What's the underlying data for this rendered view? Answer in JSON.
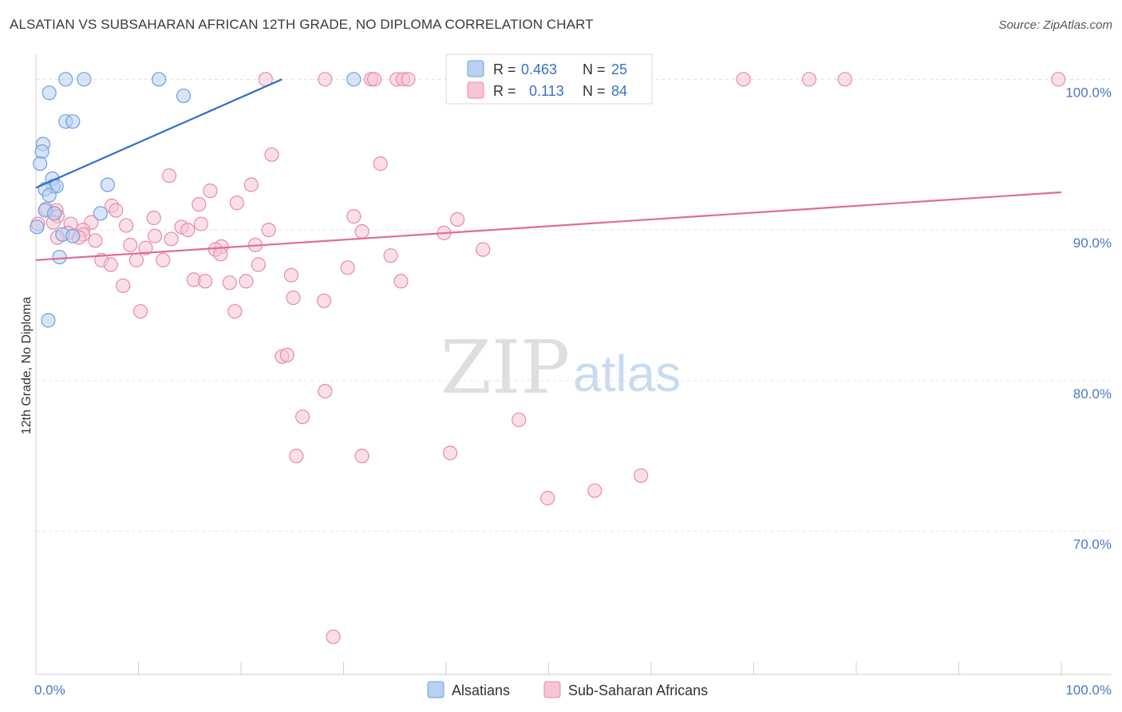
{
  "title": "ALSATIAN VS SUBSAHARAN AFRICAN 12TH GRADE, NO DIPLOMA CORRELATION CHART",
  "source": "Source: ZipAtlas.com",
  "watermark": {
    "zip": "ZIP",
    "atlas": "atlas"
  },
  "colors": {
    "blue": "#6f9fdf",
    "blue_fill": "#b8d0f2",
    "blue_line": "#2f6fc9",
    "pink": "#e88aaa",
    "pink_fill": "#f7c4d4",
    "pink_line": "#e06c97",
    "tick_text": "#4a78c2"
  },
  "legend_box": {
    "rows": [
      {
        "r_label": "R =",
        "r_value": "0.463",
        "n_label": "N =",
        "n_value": "25"
      },
      {
        "r_label": "R =",
        "r_value": "0.113",
        "n_label": "N =",
        "n_value": "84"
      }
    ]
  },
  "bottom_legend": [
    "Alsatians",
    "Sub-Saharan Africans"
  ],
  "chart_data": {
    "type": "scatter",
    "title": "ALSATIAN VS SUBSAHARAN AFRICAN 12TH GRADE, NO DIPLOMA CORRELATION CHART",
    "xlabel": "",
    "ylabel": "12th Grade, No Diploma",
    "xlim": [
      0,
      100
    ],
    "ylim": [
      60.5,
      101.5
    ],
    "x_tick_labels": [
      "0.0%",
      "100.0%"
    ],
    "y_ticks": [
      70,
      80,
      90,
      100
    ],
    "y_tick_labels": [
      "70.0%",
      "80.0%",
      "90.0%",
      "100.0%"
    ],
    "grid": true,
    "legend_placement": "bottom-center",
    "series": [
      {
        "name": "Alsatians",
        "r": 0.463,
        "n": 25,
        "trend": {
          "x0": 0,
          "y0": 92.8,
          "x1": 24.0,
          "y1": 100.0
        },
        "points": [
          [
            2.9,
            100.0
          ],
          [
            4.7,
            100.0
          ],
          [
            12.0,
            100.0
          ],
          [
            31.0,
            100.0
          ],
          [
            1.3,
            99.1
          ],
          [
            14.4,
            98.9
          ],
          [
            2.9,
            97.2
          ],
          [
            3.6,
            97.2
          ],
          [
            0.7,
            95.7
          ],
          [
            0.6,
            95.2
          ],
          [
            0.4,
            94.4
          ],
          [
            1.6,
            93.4
          ],
          [
            7.0,
            93.0
          ],
          [
            1.7,
            92.9
          ],
          [
            2.0,
            92.9
          ],
          [
            0.9,
            92.7
          ],
          [
            1.3,
            92.3
          ],
          [
            0.9,
            91.3
          ],
          [
            1.8,
            91.1
          ],
          [
            6.3,
            91.1
          ],
          [
            0.1,
            90.2
          ],
          [
            2.6,
            89.7
          ],
          [
            3.6,
            89.6
          ],
          [
            2.3,
            88.2
          ],
          [
            1.2,
            84.0
          ]
        ]
      },
      {
        "name": "Sub-Saharan Africans",
        "r": 0.113,
        "n": 84,
        "trend": {
          "x0": 0,
          "y0": 88.0,
          "x1": 100,
          "y1": 92.5
        },
        "points": [
          [
            22.4,
            100.0
          ],
          [
            28.2,
            100.0
          ],
          [
            32.7,
            100.0
          ],
          [
            33.0,
            100.0
          ],
          [
            35.2,
            100.0
          ],
          [
            35.8,
            100.0
          ],
          [
            36.3,
            100.0
          ],
          [
            44.8,
            100.0
          ],
          [
            49.7,
            100.0
          ],
          [
            69.0,
            100.0
          ],
          [
            75.4,
            100.0
          ],
          [
            78.9,
            100.0
          ],
          [
            99.7,
            100.0
          ],
          [
            23.0,
            95.0
          ],
          [
            33.6,
            94.4
          ],
          [
            13.0,
            93.6
          ],
          [
            21.0,
            93.0
          ],
          [
            17.0,
            92.6
          ],
          [
            15.9,
            91.7
          ],
          [
            19.6,
            91.8
          ],
          [
            7.4,
            91.6
          ],
          [
            1.0,
            91.4
          ],
          [
            2.0,
            91.3
          ],
          [
            7.8,
            91.3
          ],
          [
            2.1,
            90.9
          ],
          [
            31.0,
            90.9
          ],
          [
            1.7,
            90.5
          ],
          [
            41.1,
            90.7
          ],
          [
            11.5,
            90.8
          ],
          [
            0.2,
            90.4
          ],
          [
            3.4,
            90.4
          ],
          [
            5.4,
            90.5
          ],
          [
            16.1,
            90.4
          ],
          [
            8.8,
            90.3
          ],
          [
            14.2,
            90.2
          ],
          [
            14.8,
            90.0
          ],
          [
            4.6,
            90.0
          ],
          [
            22.7,
            90.0
          ],
          [
            31.8,
            89.9
          ],
          [
            39.8,
            89.8
          ],
          [
            3.1,
            89.8
          ],
          [
            4.6,
            89.7
          ],
          [
            11.6,
            89.6
          ],
          [
            2.1,
            89.5
          ],
          [
            4.2,
            89.5
          ],
          [
            13.2,
            89.4
          ],
          [
            5.8,
            89.3
          ],
          [
            9.2,
            89.0
          ],
          [
            21.4,
            89.0
          ],
          [
            18.1,
            88.9
          ],
          [
            10.7,
            88.8
          ],
          [
            17.5,
            88.7
          ],
          [
            43.6,
            88.7
          ],
          [
            18.0,
            88.4
          ],
          [
            34.6,
            88.3
          ],
          [
            6.4,
            88.0
          ],
          [
            9.8,
            88.0
          ],
          [
            12.4,
            88.0
          ],
          [
            7.3,
            87.7
          ],
          [
            21.7,
            87.7
          ],
          [
            30.4,
            87.5
          ],
          [
            24.9,
            87.0
          ],
          [
            15.4,
            86.7
          ],
          [
            16.5,
            86.6
          ],
          [
            20.5,
            86.6
          ],
          [
            18.9,
            86.5
          ],
          [
            35.6,
            86.6
          ],
          [
            8.5,
            86.3
          ],
          [
            25.1,
            85.5
          ],
          [
            28.1,
            85.3
          ],
          [
            10.2,
            84.6
          ],
          [
            19.4,
            84.6
          ],
          [
            24.0,
            81.6
          ],
          [
            24.5,
            81.7
          ],
          [
            28.2,
            79.3
          ],
          [
            26.0,
            77.6
          ],
          [
            47.1,
            77.4
          ],
          [
            25.4,
            75.0
          ],
          [
            31.8,
            75.0
          ],
          [
            40.4,
            75.2
          ],
          [
            59.0,
            73.7
          ],
          [
            49.9,
            72.2
          ],
          [
            54.5,
            72.7
          ],
          [
            29.0,
            63.0
          ]
        ]
      }
    ]
  }
}
